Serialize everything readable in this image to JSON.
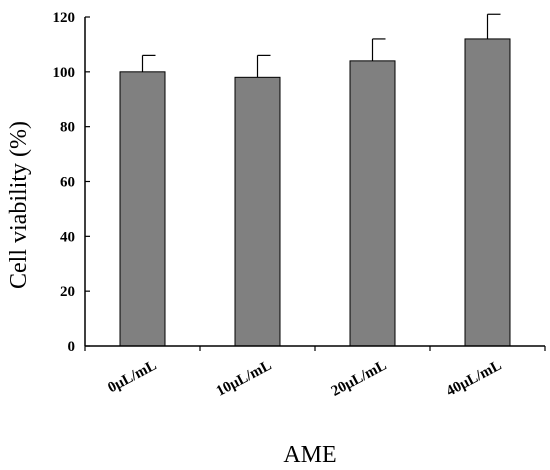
{
  "chart_data": {
    "type": "bar",
    "title": "",
    "xlabel": "AME",
    "ylabel": "Cell viability (%)",
    "ylim": [
      0,
      120
    ],
    "yticks": [
      0,
      20,
      40,
      60,
      80,
      100,
      120
    ],
    "categories": [
      "0μL/mL",
      "10μL/mL",
      "20μL/mL",
      "40μL/mL"
    ],
    "values": [
      100,
      98,
      104,
      112
    ],
    "errors": [
      6,
      8,
      8,
      9
    ],
    "bar_color": "#808080",
    "grid": false,
    "legend": "none"
  }
}
